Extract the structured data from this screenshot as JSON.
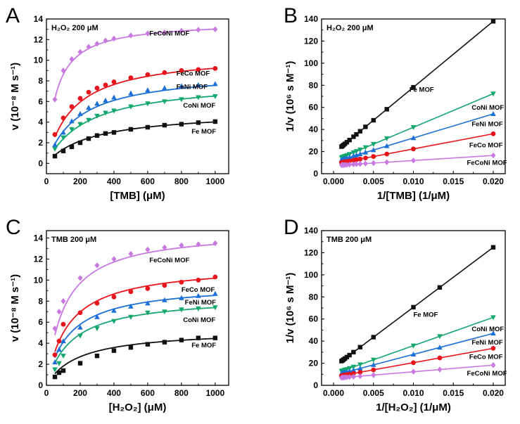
{
  "colors": {
    "Fe MOF": "#111111",
    "FeCo MOF": "#e8141b",
    "FeNi MOF": "#1b6fd6",
    "CoNi MOF": "#14a86d",
    "FeCoNi MOF": "#c878e0"
  },
  "chart_data": [
    {
      "type": "line",
      "panel": "A",
      "annotation": "H₂O₂ 200 μM",
      "xlabel": "[TMB] (μM)",
      "ylabel": "v (10⁻⁸ M s⁻¹)",
      "xlim": [
        0,
        1080
      ],
      "ylim": [
        -1,
        14
      ],
      "xticks": [
        0,
        200,
        400,
        600,
        800,
        1000
      ],
      "yticks": [
        0,
        2,
        4,
        6,
        8,
        10,
        12,
        14
      ],
      "fit": "michaelis-menten",
      "series": [
        {
          "name": "Fe MOF",
          "marker": "square",
          "vmax": 5.1,
          "km": 270,
          "x": [
            50,
            100,
            150,
            200,
            250,
            300,
            350,
            400,
            500,
            600,
            700,
            800,
            900,
            1000
          ],
          "y": [
            0.7,
            1.2,
            1.6,
            2.0,
            2.4,
            2.7,
            2.9,
            3.0,
            3.3,
            3.5,
            3.7,
            3.8,
            3.95,
            4.05
          ]
        },
        {
          "name": "CoNi MOF",
          "marker": "triangle-down",
          "vmax": 8.1,
          "km": 240,
          "x": [
            50,
            100,
            150,
            200,
            250,
            300,
            350,
            400,
            500,
            600,
            700,
            800,
            900,
            1000
          ],
          "y": [
            1.4,
            2.5,
            3.3,
            3.8,
            4.2,
            4.6,
            4.9,
            5.1,
            5.5,
            5.8,
            6.0,
            6.2,
            6.4,
            6.5
          ]
        },
        {
          "name": "FeNi MOF",
          "marker": "triangle-up",
          "vmax": 9.0,
          "km": 190,
          "x": [
            50,
            100,
            150,
            200,
            250,
            300,
            350,
            400,
            500,
            600,
            700,
            800,
            900,
            1000
          ],
          "y": [
            1.8,
            3.0,
            4.1,
            4.8,
            5.4,
            5.8,
            6.1,
            6.4,
            6.8,
            7.1,
            7.3,
            7.5,
            7.6,
            7.7
          ]
        },
        {
          "name": "FeCo MOF",
          "marker": "circle",
          "vmax": 10.7,
          "km": 160,
          "x": [
            50,
            100,
            150,
            200,
            250,
            300,
            350,
            400,
            500,
            600,
            700,
            800,
            900,
            1000
          ],
          "y": [
            2.8,
            4.4,
            5.5,
            6.3,
            6.9,
            7.3,
            7.6,
            7.9,
            8.3,
            8.6,
            8.8,
            9.0,
            9.1,
            9.2
          ]
        },
        {
          "name": "FeCoNi MOF",
          "marker": "diamond",
          "vmax": 13.8,
          "km": 60,
          "x": [
            50,
            100,
            150,
            200,
            250,
            300,
            350,
            400,
            500,
            600,
            700,
            800,
            900,
            1000
          ],
          "y": [
            6.2,
            9.0,
            10.1,
            10.8,
            11.3,
            11.6,
            11.9,
            12.1,
            12.4,
            12.6,
            12.7,
            12.85,
            12.95,
            13.0
          ]
        }
      ],
      "labels": [
        {
          "text": "FeCoNi MOF",
          "x": 610,
          "y": 12.4
        },
        {
          "text": "FeCo MOF",
          "x": 770,
          "y": 8.5
        },
        {
          "text": "FeNi MOF",
          "x": 770,
          "y": 7.2
        },
        {
          "text": "CoNi MOF",
          "x": 810,
          "y": 5.4
        },
        {
          "text": "Fe MOF",
          "x": 860,
          "y": 2.9
        }
      ]
    },
    {
      "type": "line",
      "panel": "B",
      "annotation": "H₂O₂ 200 μM",
      "xlabel": "1/[TMB] (1/μM)",
      "ylabel": "1/v (10⁶ s M⁻¹)",
      "xlim": [
        -0.0015,
        0.0215
      ],
      "ylim": [
        0,
        140
      ],
      "xticks": [
        0.0,
        0.005,
        0.01,
        0.015,
        0.02
      ],
      "yticks": [
        0,
        20,
        40,
        60,
        80,
        100,
        120,
        140
      ],
      "fit": "linear",
      "x": [
        0.001,
        0.00111,
        0.00125,
        0.00143,
        0.00167,
        0.002,
        0.0025,
        0.00286,
        0.00333,
        0.004,
        0.005,
        0.00667,
        0.01,
        0.02
      ],
      "series": [
        {
          "name": "Fe MOF",
          "marker": "square",
          "intercept": 18.5,
          "slope": 5970
        },
        {
          "name": "CoNi MOF",
          "marker": "triangle-down",
          "intercept": 11.6,
          "slope": 3040
        },
        {
          "name": "FeNi MOF",
          "marker": "triangle-up",
          "intercept": 10.5,
          "slope": 2180
        },
        {
          "name": "FeCo MOF",
          "marker": "circle",
          "intercept": 8.7,
          "slope": 1370
        },
        {
          "name": "FeCoNi MOF",
          "marker": "diamond",
          "intercept": 7.3,
          "slope": 460
        }
      ],
      "labels": [
        {
          "text": "Fe MOF",
          "x": 0.0095,
          "y": 74
        },
        {
          "text": "CoNi MOF",
          "x": 0.0173,
          "y": 58
        },
        {
          "text": "FeNi MOF",
          "x": 0.0173,
          "y": 43
        },
        {
          "text": "FeCo MOF",
          "x": 0.017,
          "y": 24
        },
        {
          "text": "FeCoNi MOF",
          "x": 0.0167,
          "y": 8
        }
      ]
    },
    {
      "type": "line",
      "panel": "C",
      "annotation": "TMB 200 μM",
      "xlabel": "[H₂O₂] (μM)",
      "ylabel": "v (10⁻⁸ M s⁻¹)",
      "xlim": [
        0,
        1080
      ],
      "ylim": [
        0,
        14.7
      ],
      "xticks": [
        0,
        200,
        400,
        600,
        800,
        1000
      ],
      "yticks": [
        0,
        2,
        4,
        6,
        8,
        10,
        12,
        14
      ],
      "fit": "michaelis-menten",
      "series": [
        {
          "name": "Fe MOF",
          "marker": "square",
          "vmax": 5.3,
          "km": 190,
          "x": [
            50,
            75,
            100,
            200,
            300,
            400,
            500,
            600,
            700,
            800,
            900,
            1000
          ],
          "y": [
            0.8,
            1.2,
            1.4,
            2.1,
            2.8,
            3.3,
            3.6,
            3.9,
            4.1,
            4.3,
            4.5,
            4.5
          ]
        },
        {
          "name": "CoNi MOF",
          "marker": "triangle-down",
          "vmax": 8.5,
          "km": 150,
          "x": [
            50,
            75,
            100,
            200,
            300,
            400,
            500,
            600,
            700,
            800,
            900,
            1000
          ],
          "y": [
            1.5,
            2.1,
            2.8,
            4.7,
            5.4,
            6.1,
            6.5,
            6.9,
            7.0,
            7.2,
            7.3,
            7.4
          ]
        },
        {
          "name": "FeNi MOF",
          "marker": "triangle-up",
          "vmax": 9.7,
          "km": 135,
          "x": [
            50,
            75,
            100,
            200,
            300,
            400,
            500,
            600,
            700,
            800,
            900,
            1000
          ],
          "y": [
            2.2,
            3.4,
            4.2,
            5.5,
            6.5,
            7.1,
            7.5,
            7.8,
            8.1,
            8.3,
            8.5,
            8.7
          ]
        },
        {
          "name": "FeCo MOF",
          "marker": "circle",
          "vmax": 11.5,
          "km": 130,
          "x": [
            50,
            75,
            100,
            200,
            300,
            400,
            500,
            600,
            700,
            800,
            900,
            1000
          ],
          "y": [
            2.9,
            4.2,
            5.8,
            6.9,
            7.8,
            8.4,
            8.9,
            9.2,
            9.5,
            9.8,
            10.0,
            10.3
          ]
        },
        {
          "name": "FeCoNi MOF",
          "marker": "diamond",
          "vmax": 14.8,
          "km": 105,
          "x": [
            50,
            75,
            100,
            200,
            300,
            400,
            500,
            600,
            700,
            800,
            900,
            1000
          ],
          "y": [
            5.4,
            7.0,
            8.0,
            10.2,
            11.4,
            12.0,
            12.5,
            12.9,
            13.1,
            13.3,
            13.4,
            13.5
          ]
        }
      ],
      "labels": [
        {
          "text": "FeCoNi MOF",
          "x": 610,
          "y": 11.7
        },
        {
          "text": "FeCo MOF",
          "x": 800,
          "y": 8.9
        },
        {
          "text": "FeNi MOF",
          "x": 820,
          "y": 7.7
        },
        {
          "text": "CoNi MOF",
          "x": 810,
          "y": 6.0
        },
        {
          "text": "Fe MOF",
          "x": 860,
          "y": 3.6
        }
      ]
    },
    {
      "type": "line",
      "panel": "D",
      "annotation": "TMB 200 μM",
      "xlabel": "1/[H₂O₂] (1/μM)",
      "ylabel": "1/v (10⁶ s M⁻¹)",
      "xlim": [
        -0.0015,
        0.0215
      ],
      "ylim": [
        0,
        140
      ],
      "xticks": [
        0.0,
        0.005,
        0.01,
        0.015,
        0.02
      ],
      "yticks": [
        0,
        20,
        40,
        60,
        80,
        100,
        120,
        140
      ],
      "fit": "linear",
      "x": [
        0.001,
        0.00111,
        0.00125,
        0.00143,
        0.00167,
        0.002,
        0.0025,
        0.00333,
        0.005,
        0.01,
        0.0133,
        0.02
      ],
      "series": [
        {
          "name": "Fe MOF",
          "marker": "square",
          "intercept": 16.5,
          "slope": 5420
        },
        {
          "name": "CoNi MOF",
          "marker": "triangle-down",
          "intercept": 10.3,
          "slope": 2560
        },
        {
          "name": "FeNi MOF",
          "marker": "triangle-up",
          "intercept": 9.0,
          "slope": 1900
        },
        {
          "name": "FeCo MOF",
          "marker": "circle",
          "intercept": 7.5,
          "slope": 1300
        },
        {
          "name": "FeCoNi MOF",
          "marker": "diamond",
          "intercept": 6.3,
          "slope": 600
        }
      ],
      "labels": [
        {
          "text": "Fe MOF",
          "x": 0.01,
          "y": 62
        },
        {
          "text": "CoNi MOF",
          "x": 0.0173,
          "y": 49
        },
        {
          "text": "FeNi MOF",
          "x": 0.0173,
          "y": 37
        },
        {
          "text": "FeCo MOF",
          "x": 0.017,
          "y": 24
        },
        {
          "text": "FeCoNi MOF",
          "x": 0.0167,
          "y": 9
        }
      ]
    }
  ]
}
